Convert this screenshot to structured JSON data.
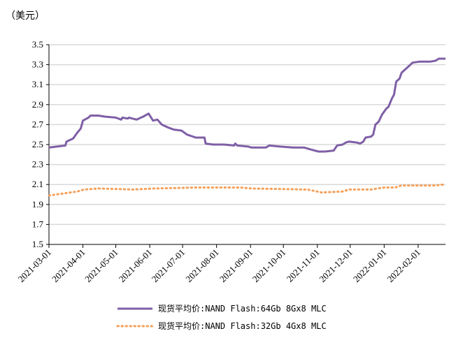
{
  "chart_data": {
    "type": "line",
    "unit_label": "（美元）",
    "x_axis": {
      "start_date": "2021-03-01",
      "x_unit": "days since 2021-03-01",
      "tick_labels": [
        "2021-03-01",
        "2021-04-01",
        "2021-05-01",
        "2021-06-01",
        "2021-07-01",
        "2021-08-01",
        "2021-09-01",
        "2021-10-01",
        "2021-11-01",
        "2021-12-01",
        "2022-01-01",
        "2022-02-01"
      ],
      "tick_days": [
        0,
        31,
        61,
        92,
        122,
        153,
        184,
        214,
        245,
        275,
        306,
        337
      ],
      "xlim": [
        0,
        362
      ]
    },
    "y_axis": {
      "ylim": [
        1.5,
        3.5
      ],
      "tick_labels": [
        "1.5",
        "1.7",
        "1.9",
        "2.1",
        "2.3",
        "2.5",
        "2.7",
        "2.9",
        "3.1",
        "3.3",
        "3.5"
      ],
      "tick_values": [
        1.5,
        1.7,
        1.9,
        2.1,
        2.3,
        2.5,
        2.7,
        2.9,
        3.1,
        3.3,
        3.5
      ],
      "grid": true
    },
    "legend_position": "bottom",
    "series": [
      {
        "name": "现货平均价:NAND Flash:64Gb 8Gx8 MLC",
        "color": "#7f5fa6",
        "style": "solid",
        "x": [
          0,
          15,
          16,
          22,
          26,
          29,
          31,
          36,
          38,
          45,
          51,
          61,
          66,
          67,
          72,
          73,
          80,
          86,
          91,
          95,
          99,
          103,
          109,
          114,
          121,
          126,
          134,
          142,
          143,
          150,
          160,
          169,
          170,
          172,
          182,
          185,
          198,
          201,
          211,
          223,
          233,
          239,
          246,
          252,
          260,
          263,
          268,
          271,
          274,
          281,
          284,
          287,
          289,
          294,
          296,
          298,
          301,
          304,
          308,
          310,
          313,
          315,
          317,
          320,
          322,
          327,
          332,
          338,
          348,
          353,
          356,
          362
        ],
        "y": [
          2.47,
          2.49,
          2.53,
          2.56,
          2.62,
          2.66,
          2.74,
          2.77,
          2.79,
          2.79,
          2.78,
          2.77,
          2.75,
          2.77,
          2.76,
          2.77,
          2.75,
          2.78,
          2.81,
          2.74,
          2.75,
          2.7,
          2.67,
          2.65,
          2.64,
          2.6,
          2.57,
          2.57,
          2.51,
          2.5,
          2.5,
          2.49,
          2.51,
          2.49,
          2.48,
          2.47,
          2.47,
          2.49,
          2.48,
          2.47,
          2.47,
          2.45,
          2.43,
          2.43,
          2.44,
          2.49,
          2.5,
          2.52,
          2.53,
          2.52,
          2.51,
          2.53,
          2.57,
          2.58,
          2.6,
          2.7,
          2.73,
          2.8,
          2.86,
          2.88,
          2.96,
          3.0,
          3.13,
          3.16,
          3.22,
          3.27,
          3.32,
          3.33,
          3.33,
          3.34,
          3.36,
          3.36
        ]
      },
      {
        "name": "现货平均价:NAND Flash:32Gb 4Gx8 MLC",
        "color": "#f5a05a",
        "style": "dotted",
        "x": [
          0,
          13,
          26,
          32,
          45,
          77,
          96,
          134,
          175,
          185,
          236,
          249,
          268,
          274,
          294,
          306,
          316,
          322,
          351,
          362
        ],
        "y": [
          1.99,
          2.01,
          2.03,
          2.05,
          2.06,
          2.05,
          2.06,
          2.07,
          2.07,
          2.06,
          2.05,
          2.02,
          2.03,
          2.05,
          2.05,
          2.07,
          2.07,
          2.09,
          2.09,
          2.1
        ]
      }
    ]
  }
}
